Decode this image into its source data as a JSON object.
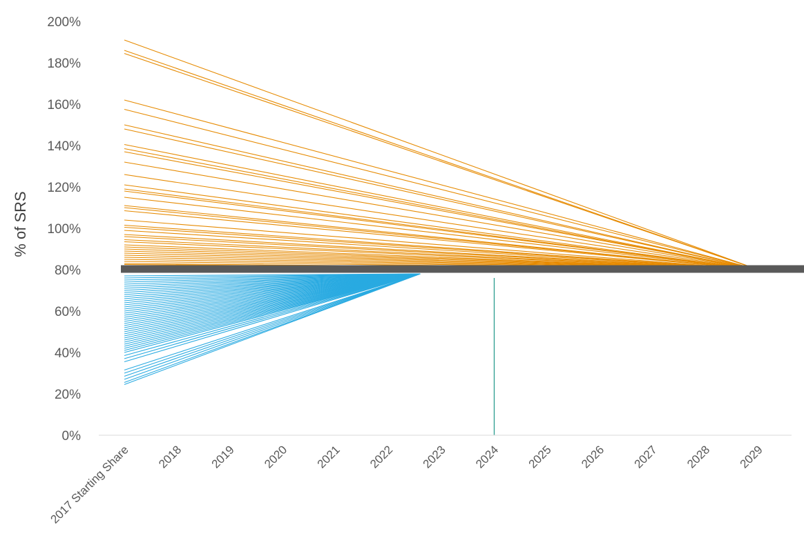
{
  "chart_data": {
    "type": "line",
    "title": "",
    "xlabel": "",
    "ylabel": "% of SRS",
    "categories": [
      "2017 Starting Share",
      "2018",
      "2019",
      "2020",
      "2021",
      "2022",
      "2023",
      "2024",
      "2025",
      "2026",
      "2027",
      "2028",
      "2029"
    ],
    "ylim": [
      0,
      200
    ],
    "yticks": [
      "0%",
      "20%",
      "40%",
      "60%",
      "80%",
      "100%",
      "120%",
      "140%",
      "160%",
      "180%",
      "200%"
    ],
    "grid": false,
    "legend": "none",
    "reference_line": {
      "value": 80,
      "from": "2017 Starting Share",
      "to": "2029",
      "color": "#595959"
    },
    "marker_line": {
      "at": "2024",
      "from": 0,
      "to": 76,
      "color": "#2a9d8f"
    },
    "above_target": {
      "color": "#e68a00",
      "end_x": 12,
      "end_value": 80,
      "start_values": [
        191,
        186,
        184.5,
        162,
        157.5,
        150,
        148,
        140.5,
        138.5,
        137,
        132,
        126,
        121,
        119,
        118,
        115,
        111,
        110,
        108.5,
        104,
        101.5,
        100.5,
        99,
        97,
        96,
        94.5,
        93.5,
        92,
        91,
        90,
        89,
        88,
        87,
        86,
        85,
        84,
        83,
        82.5
      ]
    },
    "below_target": {
      "color": "#29aae1",
      "end_x": 5.6,
      "end_value": 78,
      "start_values": [
        77,
        76,
        75,
        74,
        73,
        72,
        71,
        70,
        69,
        68,
        67,
        66,
        65,
        64,
        63,
        62,
        61,
        60,
        59,
        58,
        57,
        56,
        55,
        54,
        53,
        52,
        51,
        50,
        49,
        48,
        47,
        46,
        45,
        44,
        43,
        42,
        41,
        40,
        38.5,
        37,
        35.5,
        31.5,
        30,
        28.5,
        27,
        25.5,
        24.5
      ]
    }
  }
}
